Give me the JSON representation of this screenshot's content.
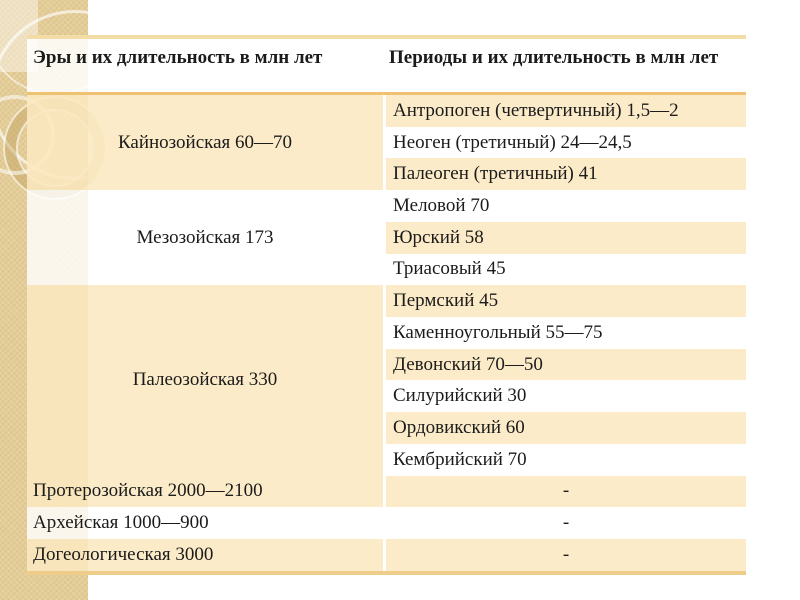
{
  "slide": {
    "colors": {
      "accent_gold": "#E0AA50",
      "strip_tan": "#E3CC96",
      "row_cream": "#FCE8C0",
      "row_white": "#FFFFFF",
      "text": "#1B1B1B"
    }
  },
  "table": {
    "header": {
      "era_col": "Эры и их длительность в млн лет",
      "period_col": "Периоды и их длительность в млн лет"
    },
    "eras": [
      {
        "label": "Кайнозойская 60—70"
      },
      {
        "label": "Мезозойская 173"
      },
      {
        "label": "Палеозойская 330"
      },
      {
        "label": "Протерозойская 2000—2100"
      },
      {
        "label": "Архейская 1000—900"
      },
      {
        "label": "Догеологическая 3000"
      }
    ],
    "periods": [
      "Антропоген (четвертичный) 1,5—2",
      "Неоген (третичный) 24—24,5",
      "Палеоген (третичный) 41",
      "Меловой 70",
      "Юрский 58",
      "Триасовый 45",
      "Пермский 45",
      "Каменноугольный 55—75",
      "Девонский 70—50",
      "Силурийский 30",
      "Ордовикский 60",
      "Кембрийский 70"
    ],
    "empty_value": "-"
  }
}
